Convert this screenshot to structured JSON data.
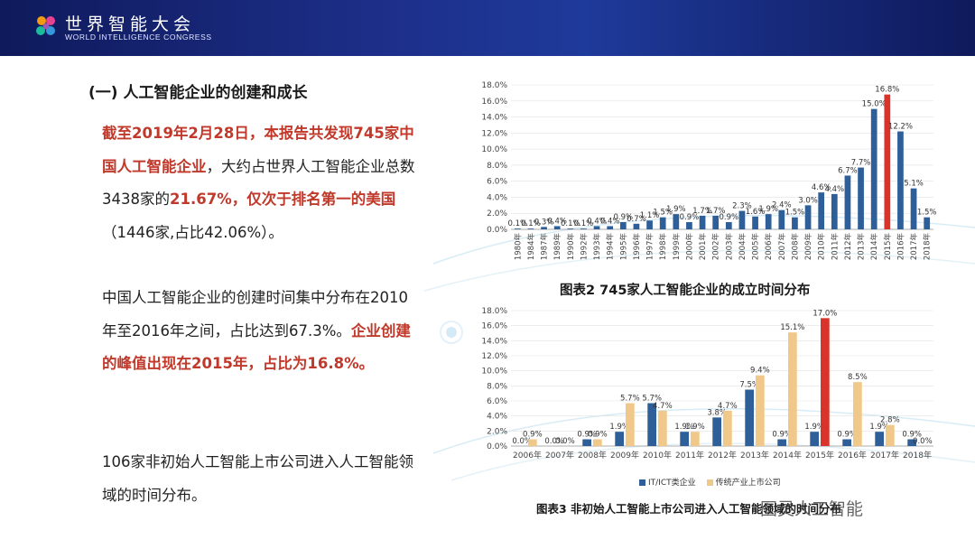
{
  "header": {
    "brand_cn": "世界智能大会",
    "brand_en": "WORLD INTELLIGENCE CONGRESS"
  },
  "section_title": "(一) 人工智能企业的创建和成长",
  "paragraph1": {
    "red1": "截至2019年2月28日，本报告共发现745家中国人工智能企业",
    "t1": "，大约占世界人工智能企业总数3438家的",
    "red2": "21.67%，仅次于排名第一的美国",
    "t2": "（1446家,占比42.06%）。"
  },
  "paragraph2": {
    "t1": "中国人工智能企业的创建时间集中分布在2010年至2016年之间，占比达到67.3%。",
    "red1": "企业创建的峰值出现在2015年，占比为16.8%。"
  },
  "paragraph3": "106家非初始人工智能上市公司进入人工智能领域的时间分布。",
  "caption_chart2": "图表2  745家人工智能企业的成立时间分布",
  "caption_chart3": "图表3    非初始人工智能上市公司进入人工智能领域的时间分布",
  "watermark": "图灵人工智能",
  "colors": {
    "bar_blue": "#2f5f98",
    "bar_red": "#d9342b",
    "bar_tan": "#f0c98a",
    "header_navy": "#142070"
  },
  "chart_data": [
    {
      "type": "bar",
      "categories": [
        "1980年",
        "1984年",
        "1987年",
        "1989年",
        "1990年",
        "1992年",
        "1993年",
        "1994年",
        "1995年",
        "1996年",
        "1997年",
        "1998年",
        "1999年",
        "2000年",
        "2001年",
        "2002年",
        "2003年",
        "2004年",
        "2005年",
        "2006年",
        "2007年",
        "2008年",
        "2009年",
        "2010年",
        "2011年",
        "2012年",
        "2013年",
        "2014年",
        "2015年",
        "2016年",
        "2017年",
        "2018年"
      ],
      "values": [
        0.1,
        0.1,
        0.3,
        0.4,
        0.1,
        0.1,
        0.4,
        0.4,
        0.9,
        0.7,
        1.1,
        1.5,
        1.9,
        0.9,
        1.7,
        1.7,
        0.9,
        2.3,
        1.6,
        1.9,
        2.4,
        1.5,
        3.0,
        4.6,
        4.4,
        6.7,
        7.7,
        15.0,
        16.8,
        12.2,
        5.1,
        1.5
      ],
      "labels": [
        "0.1%",
        "0.1%",
        "0.3%",
        "0.4%",
        "0.1%",
        "0.1%",
        "0.4%",
        "0.4%",
        "0.9%",
        "0.7%",
        "1.1%",
        "1.5%",
        "1.9%",
        "0.9%",
        "1.7%",
        "1.7%",
        "0.9%",
        "2.3%",
        "1.6%",
        "1.9%",
        "2.4%",
        "1.5%",
        "3.0%",
        "4.6%",
        "4.4%",
        "6.7%",
        "7.7%",
        "15.0%",
        "16.8%",
        "12.2%",
        "5.1%",
        "1.5%"
      ],
      "highlight_index": 28,
      "yticks": [
        "0.0%",
        "2.0%",
        "4.0%",
        "6.0%",
        "8.0%",
        "10.0%",
        "12.0%",
        "14.0%",
        "16.0%",
        "18.0%"
      ],
      "ylim": [
        0,
        18
      ]
    },
    {
      "type": "bar",
      "categories": [
        "2006年",
        "2007年",
        "2008年",
        "2009年",
        "2010年",
        "2011年",
        "2012年",
        "2013年",
        "2014年",
        "2015年",
        "2016年",
        "2017年",
        "2018年"
      ],
      "series": [
        {
          "name": "IT/ICT类企业",
          "values": [
            0.0,
            0.0,
            0.9,
            1.9,
            5.7,
            1.9,
            3.8,
            7.5,
            0.9,
            1.9,
            0.9,
            1.9,
            0.9
          ],
          "labels": [
            "0.0%",
            "0.0%",
            "0.9%",
            "1.9%",
            "5.7%",
            "1.9%",
            "3.8%",
            "7.5%",
            "0.9%",
            "1.9%",
            "0.9%",
            "1.9%",
            "0.9%"
          ]
        },
        {
          "name": "传统产业上市公司",
          "values": [
            0.9,
            0.0,
            0.9,
            5.7,
            4.7,
            1.9,
            4.7,
            9.4,
            15.1,
            17.0,
            8.5,
            2.8,
            0.0
          ],
          "labels": [
            "0.9%",
            "0.0%",
            "0.9%",
            "5.7%",
            "4.7%",
            "1.9%",
            "4.7%",
            "9.4%",
            "15.1%",
            "17.0%",
            "8.5%",
            "2.8%",
            "0.0%"
          ]
        }
      ],
      "highlight_index": 9,
      "yticks": [
        "0.0%",
        "2.0%",
        "4.0%",
        "6.0%",
        "8.0%",
        "10.0%",
        "12.0%",
        "14.0%",
        "16.0%",
        "18.0%"
      ],
      "ylim": [
        0,
        18
      ],
      "legend": "bottom"
    }
  ]
}
